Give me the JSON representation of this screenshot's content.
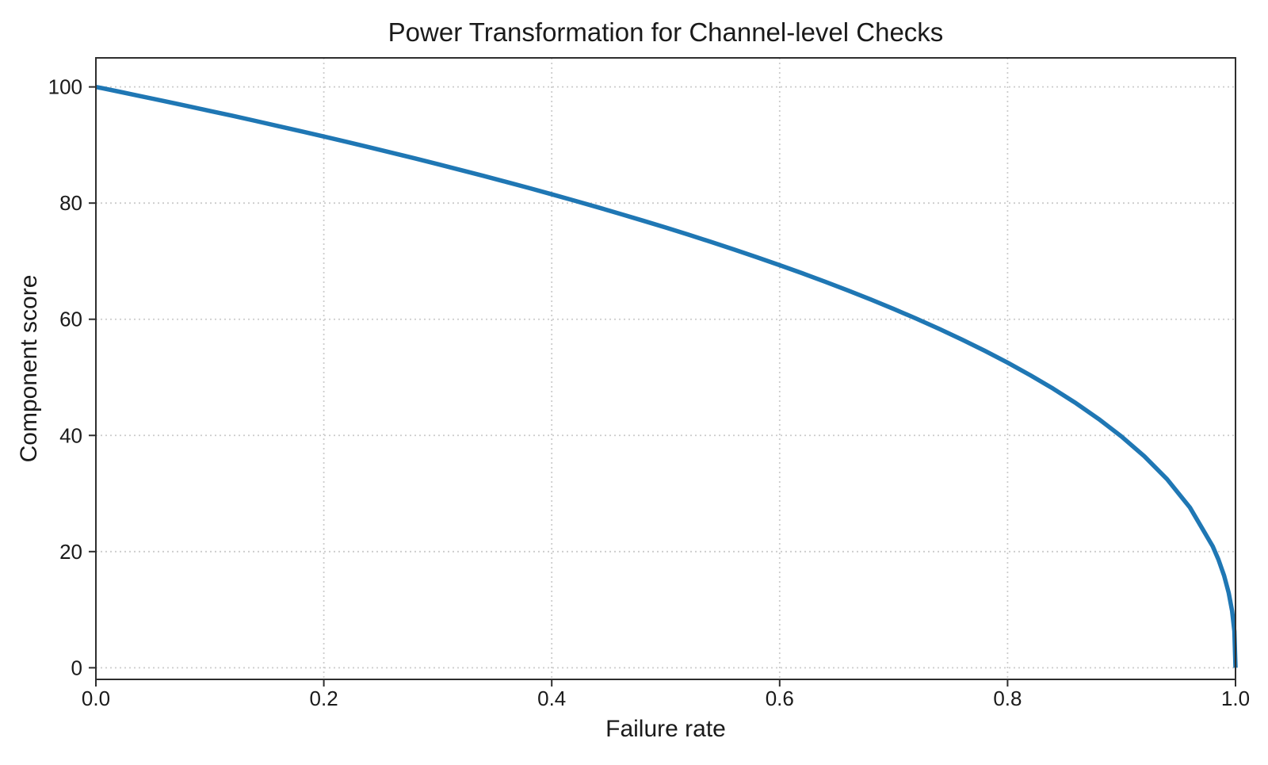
{
  "figure": {
    "background_color": "#ffffff",
    "text_color": "#1a1a1a",
    "spine_color": "#2e2e2e",
    "grid_color": "#cccccc",
    "tick_color": "#2e2e2e"
  },
  "chart_data": {
    "type": "line",
    "title": "Power Transformation for Channel-level Checks",
    "xlabel": "Failure rate",
    "ylabel": "Component score",
    "xlim": [
      0.0,
      1.0
    ],
    "ylim": [
      -2,
      105
    ],
    "x_ticks": [
      "0.0",
      "0.2",
      "0.4",
      "0.6",
      "0.8",
      "1.0"
    ],
    "x_tick_values": [
      0.0,
      0.2,
      0.4,
      0.6,
      0.8,
      1.0
    ],
    "y_ticks": [
      "0",
      "20",
      "40",
      "60",
      "80",
      "100"
    ],
    "y_tick_values": [
      0,
      20,
      40,
      60,
      80,
      100
    ],
    "grid": true,
    "grid_style": "dotted",
    "legend_position": "none",
    "series": [
      {
        "name": "power-transformation-curve",
        "formula": "score = 100 * (1 - failure_rate) ^ 0.4",
        "color": "#1f77b4",
        "linewidth": 5.5,
        "x": [
          0.0,
          0.02,
          0.04,
          0.06,
          0.08,
          0.1,
          0.12,
          0.14,
          0.16,
          0.18,
          0.2,
          0.22,
          0.24,
          0.26,
          0.28,
          0.3,
          0.32,
          0.34,
          0.36,
          0.38,
          0.4,
          0.42,
          0.44,
          0.46,
          0.48,
          0.5,
          0.52,
          0.54,
          0.56,
          0.58,
          0.6,
          0.62,
          0.64,
          0.66,
          0.68,
          0.7,
          0.72,
          0.74,
          0.76,
          0.78,
          0.8,
          0.82,
          0.84,
          0.86,
          0.88,
          0.9,
          0.92,
          0.94,
          0.96,
          0.98,
          0.985,
          0.99,
          0.994,
          0.997,
          0.999,
          1.0
        ],
        "y": [
          100.0,
          99.2,
          98.38,
          97.56,
          96.72,
          95.87,
          95.02,
          94.15,
          93.26,
          92.37,
          91.46,
          90.54,
          89.6,
          88.65,
          87.69,
          86.7,
          85.7,
          84.69,
          83.65,
          82.6,
          81.52,
          80.42,
          79.3,
          78.15,
          76.98,
          75.79,
          74.56,
          73.3,
          72.01,
          70.68,
          69.31,
          67.91,
          66.45,
          64.95,
          63.4,
          61.78,
          60.1,
          58.34,
          56.5,
          54.57,
          52.53,
          50.36,
          48.05,
          45.55,
          42.82,
          39.81,
          36.41,
          32.45,
          27.59,
          20.91,
          18.64,
          15.85,
          12.92,
          9.79,
          6.31,
          0.0
        ]
      }
    ]
  }
}
